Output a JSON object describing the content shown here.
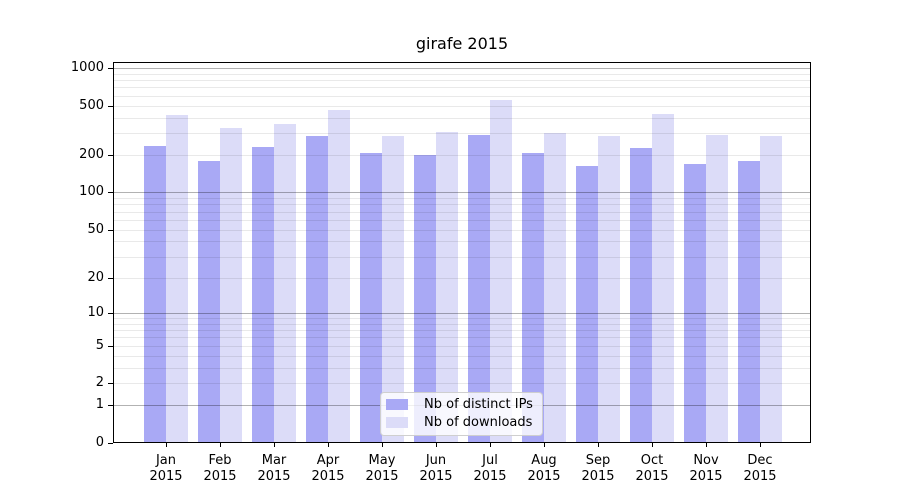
{
  "title": "girafe 2015",
  "chart_data": {
    "type": "bar",
    "title": "girafe 2015",
    "categories": [
      "Jan",
      "Feb",
      "Mar",
      "Apr",
      "May",
      "Jun",
      "Jul",
      "Aug",
      "Sep",
      "Oct",
      "Nov",
      "Dec"
    ],
    "category_year": "2015",
    "series": [
      {
        "name": "Nb of distinct IPs",
        "color": "#a9a9f5",
        "values": [
          235,
          179,
          231,
          286,
          209,
          200,
          290,
          209,
          162,
          229,
          170,
          178
        ]
      },
      {
        "name": "Nb of downloads",
        "color": "#dcdcf8",
        "values": [
          420,
          332,
          353,
          460,
          285,
          305,
          554,
          303,
          285,
          428,
          290,
          285
        ]
      }
    ],
    "xlabel": "",
    "ylabel": "",
    "yscale": "log1p",
    "ylim": [
      0,
      1000
    ],
    "yticks": [
      0,
      1,
      2,
      5,
      10,
      20,
      50,
      100,
      200,
      500,
      1000
    ],
    "major_gridlines": [
      1,
      10,
      100,
      1000
    ],
    "minor_gridlines": [
      2,
      3,
      4,
      5,
      6,
      7,
      8,
      9,
      20,
      30,
      40,
      50,
      60,
      70,
      80,
      90,
      200,
      300,
      400,
      500,
      600,
      700,
      800,
      900
    ],
    "grid": true,
    "legend_position": "lower center inside plot"
  },
  "colors": {
    "background": "#ffffff",
    "spine": "#000000",
    "major_grid": "rgba(0,0,0,0.30)",
    "minor_grid": "rgba(0,0,0,0.085)"
  }
}
